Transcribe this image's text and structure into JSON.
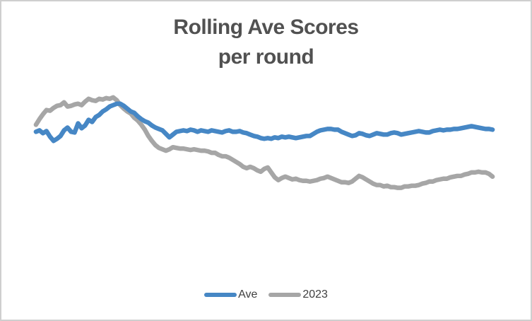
{
  "window": {
    "background": "#ffffff",
    "border_color": "#cfcfcf"
  },
  "title": {
    "line1": "Rolling Ave Scores",
    "line2": "per round",
    "color": "#515151"
  },
  "legend": {
    "position": "bottom-center",
    "text_color": "#3f3f3f",
    "items": [
      {
        "label": "Ave",
        "color": "#4687c5"
      },
      {
        "label": "2023",
        "color": "#a6a6a6"
      }
    ]
  },
  "chart_data": {
    "type": "line",
    "title": "Rolling Ave Scores per round",
    "xlabel": "",
    "ylabel": "",
    "x_axis": "round index (no tick labels visible in chart)",
    "y_axis": "score in relative units (no tick labels visible; values estimated from line positions)",
    "axes_visible": false,
    "gridlines": false,
    "legend_position": "bottom",
    "x_count": 131,
    "ylim": [
      0,
      180
    ],
    "series": [
      {
        "name": "Ave",
        "color": "#4687c5",
        "values": [
          114,
          116,
          112,
          115,
          107,
          101,
          104,
          108,
          116,
          120,
          114,
          113,
          126,
          119,
          123,
          131,
          128,
          135,
          138,
          143,
          146,
          150,
          152,
          154,
          154,
          151,
          147,
          143,
          141,
          136,
          132,
          129,
          127,
          123,
          120,
          118,
          116,
          111,
          106,
          110,
          114,
          115,
          116,
          115,
          117,
          116,
          114,
          116,
          115,
          114,
          116,
          115,
          114,
          113,
          115,
          116,
          114,
          114,
          115,
          113,
          112,
          110,
          108,
          107,
          105,
          104,
          105,
          104,
          106,
          105,
          107,
          106,
          107,
          106,
          105,
          106,
          107,
          108,
          108,
          111,
          114,
          116,
          117,
          118,
          118,
          117,
          117,
          114,
          112,
          110,
          108,
          109,
          112,
          111,
          109,
          108,
          110,
          112,
          111,
          110,
          110,
          112,
          113,
          112,
          110,
          111,
          112,
          113,
          114,
          115,
          114,
          113,
          113,
          115,
          116,
          117,
          116,
          117,
          117,
          118,
          118,
          119,
          120,
          121,
          122,
          121,
          120,
          119,
          118,
          118,
          117
        ]
      },
      {
        "name": "2023",
        "color": "#a6a6a6",
        "values": [
          124,
          132,
          139,
          145,
          144,
          148,
          151,
          152,
          156,
          150,
          151,
          153,
          154,
          152,
          157,
          161,
          159,
          158,
          161,
          160,
          162,
          161,
          163,
          159,
          152,
          147,
          143,
          140,
          134,
          130,
          124,
          117,
          108,
          101,
          95,
          91,
          89,
          87,
          89,
          92,
          91,
          90,
          90,
          89,
          88,
          89,
          88,
          87,
          87,
          86,
          84,
          84,
          81,
          79,
          79,
          77,
          74,
          71,
          68,
          64,
          62,
          64,
          62,
          59,
          57,
          61,
          63,
          56,
          49,
          45,
          48,
          50,
          48,
          46,
          47,
          45,
          44,
          44,
          43,
          44,
          45,
          47,
          48,
          50,
          48,
          46,
          44,
          42,
          42,
          41,
          43,
          47,
          51,
          49,
          46,
          43,
          40,
          38,
          38,
          36,
          37,
          35,
          35,
          34,
          34,
          36,
          36,
          37,
          37,
          38,
          40,
          41,
          43,
          43,
          45,
          46,
          47,
          47,
          49,
          50,
          51,
          51,
          53,
          54,
          56,
          56,
          57,
          56,
          56,
          54,
          50
        ]
      }
    ]
  }
}
